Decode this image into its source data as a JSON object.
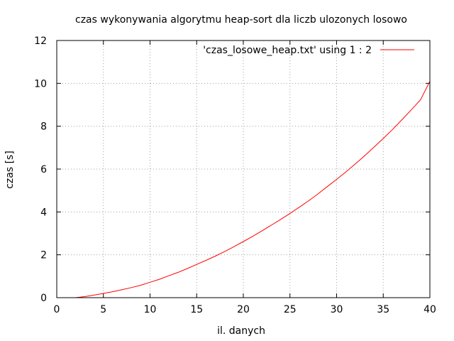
{
  "chart_data": {
    "type": "line",
    "title": "czas wykonywania algorytmu heap-sort dla liczb ulozonych losowo",
    "xlabel": "il. danych",
    "ylabel": "czas [s]",
    "xlim": [
      0,
      40
    ],
    "ylim": [
      0,
      12
    ],
    "xticks": [
      0,
      5,
      10,
      15,
      20,
      25,
      30,
      35,
      40
    ],
    "yticks": [
      0,
      2,
      4,
      6,
      8,
      10,
      12
    ],
    "grid": true,
    "legend_position": "top-right",
    "series": [
      {
        "name": "'czas_losowe_heap.txt' using 1 : 2",
        "color": "#ff0000",
        "x": [
          2,
          3,
          4,
          5,
          6,
          7,
          8,
          9,
          10,
          11,
          12,
          13,
          14,
          15,
          16,
          17,
          18,
          19,
          20,
          21,
          22,
          23,
          24,
          25,
          26,
          27,
          28,
          29,
          30,
          31,
          32,
          33,
          34,
          35,
          36,
          37,
          38,
          39,
          40
        ],
        "y": [
          0.0,
          0.05,
          0.12,
          0.2,
          0.28,
          0.37,
          0.47,
          0.58,
          0.72,
          0.86,
          1.02,
          1.18,
          1.36,
          1.55,
          1.74,
          1.94,
          2.15,
          2.38,
          2.62,
          2.86,
          3.12,
          3.38,
          3.65,
          3.93,
          4.22,
          4.52,
          4.84,
          5.18,
          5.52,
          5.87,
          6.24,
          6.62,
          7.02,
          7.43,
          7.85,
          8.3,
          8.76,
          9.24,
          10.1
        ]
      }
    ]
  }
}
